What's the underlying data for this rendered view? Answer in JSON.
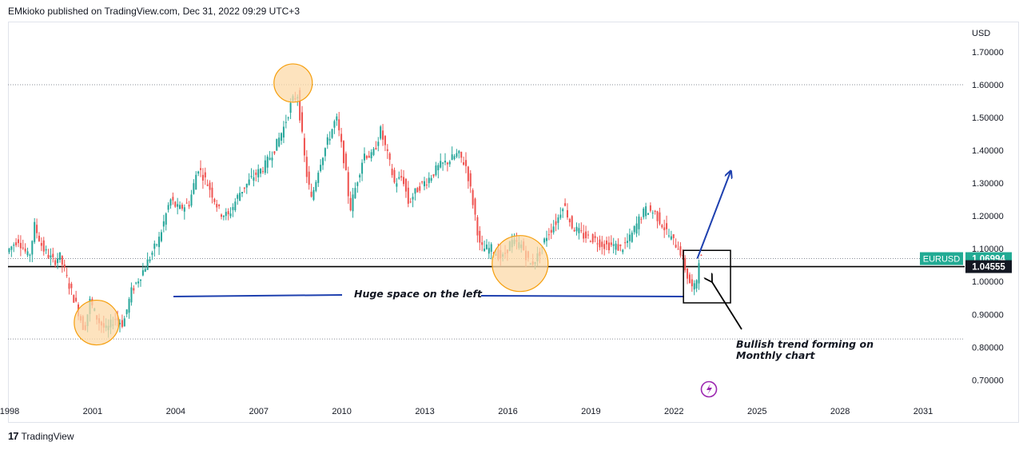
{
  "header": {
    "publisher_line": "EMkioko published on TradingView.com, Dec 31, 2022 09:29 UTC+3"
  },
  "footer": {
    "brand": "TradingView",
    "logo_glyph": "17"
  },
  "colors": {
    "up": "#26a69a",
    "down": "#ef5350",
    "trend_line": "#1e40af",
    "hline": "#000000",
    "circle_fill": "#fcd9a8",
    "circle_stroke": "#f59e0b",
    "label_green": "#22ab94",
    "label_black": "#131722",
    "purple": "#9c27b0"
  },
  "chart_data": {
    "type": "candlestick",
    "symbol": "EURUSD",
    "currency_label": "USD",
    "ylim": [
      0.64,
      1.79
    ],
    "xlim": [
      1998.0,
      2032.5
    ],
    "y_ticks": [
      "1.70000",
      "1.60000",
      "1.50000",
      "1.40000",
      "1.30000",
      "1.20000",
      "1.10000",
      "1.00000",
      "0.90000",
      "0.80000",
      "0.70000"
    ],
    "y_tick_values": [
      1.7,
      1.6,
      1.5,
      1.4,
      1.3,
      1.2,
      1.1,
      1.0,
      0.9,
      0.8,
      0.7
    ],
    "x_ticks": [
      "1998",
      "2001",
      "2004",
      "2007",
      "2010",
      "2013",
      "2016",
      "2019",
      "2022",
      "2025",
      "2028",
      "2031"
    ],
    "x_tick_values": [
      1998,
      2001,
      2004,
      2007,
      2010,
      2013,
      2016,
      2019,
      2022,
      2025,
      2028,
      2031
    ],
    "price_path": [
      [
        1998.0,
        1.09
      ],
      [
        1998.4,
        1.13
      ],
      [
        1998.8,
        1.07
      ],
      [
        1999.0,
        1.17
      ],
      [
        1999.3,
        1.1
      ],
      [
        1999.7,
        1.06
      ],
      [
        1999.9,
        1.08
      ],
      [
        2000.2,
        1.0
      ],
      [
        2000.5,
        0.93
      ],
      [
        2000.8,
        0.85
      ],
      [
        2001.0,
        0.94
      ],
      [
        2001.3,
        0.88
      ],
      [
        2001.6,
        0.85
      ],
      [
        2001.9,
        0.89
      ],
      [
        2002.2,
        0.87
      ],
      [
        2002.5,
        0.97
      ],
      [
        2002.9,
        1.03
      ],
      [
        2003.2,
        1.08
      ],
      [
        2003.5,
        1.13
      ],
      [
        2003.9,
        1.25
      ],
      [
        2004.2,
        1.22
      ],
      [
        2004.6,
        1.24
      ],
      [
        2004.9,
        1.35
      ],
      [
        2005.3,
        1.29
      ],
      [
        2005.7,
        1.21
      ],
      [
        2006.0,
        1.2
      ],
      [
        2006.4,
        1.27
      ],
      [
        2006.9,
        1.32
      ],
      [
        2007.3,
        1.35
      ],
      [
        2007.7,
        1.41
      ],
      [
        2008.0,
        1.47
      ],
      [
        2008.3,
        1.55
      ],
      [
        2008.5,
        1.57
      ],
      [
        2008.8,
        1.34
      ],
      [
        2009.0,
        1.25
      ],
      [
        2009.3,
        1.36
      ],
      [
        2009.6,
        1.43
      ],
      [
        2009.9,
        1.5
      ],
      [
        2010.2,
        1.36
      ],
      [
        2010.4,
        1.22
      ],
      [
        2010.6,
        1.29
      ],
      [
        2010.9,
        1.39
      ],
      [
        2011.2,
        1.38
      ],
      [
        2011.5,
        1.46
      ],
      [
        2011.8,
        1.37
      ],
      [
        2012.0,
        1.3
      ],
      [
        2012.3,
        1.32
      ],
      [
        2012.5,
        1.24
      ],
      [
        2012.9,
        1.29
      ],
      [
        2013.2,
        1.31
      ],
      [
        2013.6,
        1.35
      ],
      [
        2014.0,
        1.37
      ],
      [
        2014.3,
        1.39
      ],
      [
        2014.6,
        1.35
      ],
      [
        2014.9,
        1.21
      ],
      [
        2015.1,
        1.1
      ],
      [
        2015.5,
        1.1
      ],
      [
        2015.9,
        1.07
      ],
      [
        2016.2,
        1.12
      ],
      [
        2016.6,
        1.11
      ],
      [
        2016.9,
        1.05
      ],
      [
        2017.2,
        1.08
      ],
      [
        2017.5,
        1.14
      ],
      [
        2017.9,
        1.19
      ],
      [
        2018.1,
        1.24
      ],
      [
        2018.4,
        1.17
      ],
      [
        2018.8,
        1.14
      ],
      [
        2019.2,
        1.13
      ],
      [
        2019.6,
        1.11
      ],
      [
        2019.9,
        1.11
      ],
      [
        2020.2,
        1.1
      ],
      [
        2020.5,
        1.13
      ],
      [
        2020.9,
        1.2
      ],
      [
        2021.1,
        1.22
      ],
      [
        2021.4,
        1.21
      ],
      [
        2021.7,
        1.17
      ],
      [
        2022.0,
        1.13
      ],
      [
        2022.3,
        1.1
      ],
      [
        2022.6,
        1.01
      ],
      [
        2022.8,
        0.97
      ],
      [
        2022.95,
        1.02
      ],
      [
        2023.0,
        1.07
      ]
    ],
    "horizontal_lines": [
      {
        "y": 1.6,
        "style": "dotted"
      },
      {
        "y": 1.07,
        "style": "dotted"
      },
      {
        "y": 1.04555,
        "style": "solid"
      },
      {
        "y": 0.825,
        "style": "dotted"
      }
    ],
    "price_labels": [
      {
        "text": "EURUSD",
        "value": "1.06994",
        "y": 1.06994,
        "color": "#22ab94"
      },
      {
        "text": "",
        "value": "1.04555",
        "y": 1.04555,
        "color": "#131722"
      }
    ],
    "highlight_circles": [
      {
        "x": 2001.2,
        "y": 0.875
      },
      {
        "x": 2008.3,
        "y": 1.605
      },
      {
        "x": 2016.5,
        "y": 1.055
      }
    ],
    "annotations": {
      "huge_space": "Huge space on the left",
      "bullish_line1": "Bullish trend forming on",
      "bullish_line2": "Monthly chart"
    },
    "trend_arrow": {
      "from": [
        2022.9,
        1.07
      ],
      "to": [
        2024.1,
        1.335
      ]
    },
    "highlight_box": {
      "x0": 2022.4,
      "x1": 2024.1,
      "y0": 0.935,
      "y1": 1.095
    }
  }
}
